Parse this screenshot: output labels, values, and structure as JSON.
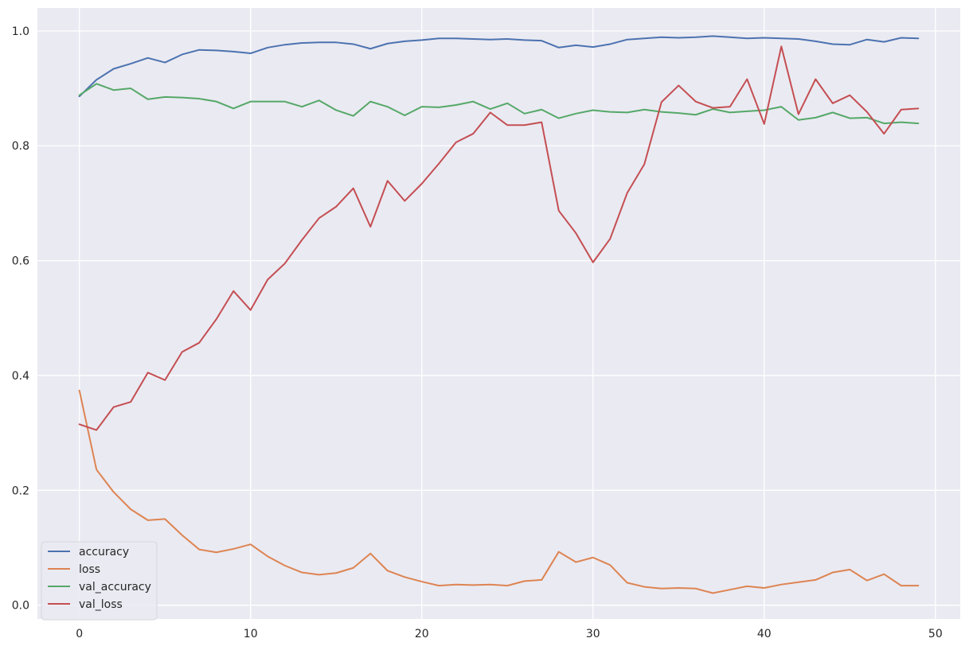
{
  "chart_data": {
    "type": "line",
    "title": "",
    "xlabel": "",
    "ylabel": "",
    "xlim": [
      -2.45,
      51.45
    ],
    "ylim": [
      -0.024,
      1.04
    ],
    "x_ticks": [
      0,
      10,
      20,
      30,
      40,
      50
    ],
    "y_ticks": [
      0.0,
      0.2,
      0.4,
      0.6,
      0.8,
      1.0
    ],
    "x_tick_labels": [
      "0",
      "10",
      "20",
      "30",
      "40",
      "50"
    ],
    "y_tick_labels": [
      "0.0",
      "0.2",
      "0.4",
      "0.6",
      "0.8",
      "1.0"
    ],
    "grid": true,
    "legend_position": "lower-left",
    "background": "#eaeaf2",
    "x": [
      0,
      1,
      2,
      3,
      4,
      5,
      6,
      7,
      8,
      9,
      10,
      11,
      12,
      13,
      14,
      15,
      16,
      17,
      18,
      19,
      20,
      21,
      22,
      23,
      24,
      25,
      26,
      27,
      28,
      29,
      30,
      31,
      32,
      33,
      34,
      35,
      36,
      37,
      38,
      39,
      40,
      41,
      42,
      43,
      44,
      45,
      46,
      47,
      48,
      49
    ],
    "series": [
      {
        "name": "accuracy",
        "color": "#4c72b0",
        "values": [
          0.886,
          0.915,
          0.934,
          0.943,
          0.953,
          0.945,
          0.959,
          0.967,
          0.966,
          0.964,
          0.961,
          0.971,
          0.976,
          0.979,
          0.98,
          0.98,
          0.977,
          0.969,
          0.978,
          0.982,
          0.984,
          0.987,
          0.987,
          0.986,
          0.985,
          0.986,
          0.984,
          0.983,
          0.971,
          0.975,
          0.972,
          0.977,
          0.985,
          0.987,
          0.989,
          0.988,
          0.989,
          0.991,
          0.989,
          0.987,
          0.988,
          0.987,
          0.986,
          0.982,
          0.977,
          0.976,
          0.985,
          0.981,
          0.988,
          0.987
        ]
      },
      {
        "name": "loss",
        "color": "#dd8452",
        "values": [
          0.374,
          0.236,
          0.197,
          0.167,
          0.148,
          0.15,
          0.122,
          0.097,
          0.092,
          0.098,
          0.106,
          0.085,
          0.069,
          0.057,
          0.053,
          0.056,
          0.065,
          0.09,
          0.06,
          0.049,
          0.041,
          0.034,
          0.036,
          0.035,
          0.036,
          0.034,
          0.042,
          0.044,
          0.093,
          0.075,
          0.083,
          0.07,
          0.039,
          0.032,
          0.029,
          0.03,
          0.029,
          0.021,
          0.027,
          0.033,
          0.03,
          0.036,
          0.04,
          0.044,
          0.057,
          0.062,
          0.043,
          0.054,
          0.034,
          0.034
        ]
      },
      {
        "name": "val_accuracy",
        "color": "#55a868",
        "values": [
          0.888,
          0.908,
          0.897,
          0.9,
          0.881,
          0.885,
          0.884,
          0.882,
          0.877,
          0.865,
          0.877,
          0.877,
          0.877,
          0.868,
          0.879,
          0.862,
          0.852,
          0.877,
          0.868,
          0.853,
          0.868,
          0.867,
          0.871,
          0.877,
          0.864,
          0.874,
          0.856,
          0.863,
          0.848,
          0.856,
          0.862,
          0.859,
          0.858,
          0.863,
          0.859,
          0.857,
          0.854,
          0.864,
          0.858,
          0.86,
          0.862,
          0.868,
          0.845,
          0.849,
          0.858,
          0.848,
          0.849,
          0.839,
          0.841,
          0.839
        ]
      },
      {
        "name": "val_loss",
        "color": "#c44e52",
        "values": [
          0.315,
          0.305,
          0.345,
          0.354,
          0.405,
          0.392,
          0.441,
          0.457,
          0.498,
          0.547,
          0.514,
          0.567,
          0.595,
          0.636,
          0.674,
          0.694,
          0.726,
          0.659,
          0.739,
          0.704,
          0.734,
          0.769,
          0.806,
          0.821,
          0.858,
          0.836,
          0.836,
          0.841,
          0.687,
          0.648,
          0.597,
          0.638,
          0.718,
          0.768,
          0.876,
          0.905,
          0.877,
          0.866,
          0.868,
          0.916,
          0.838,
          0.973,
          0.855,
          0.916,
          0.874,
          0.888,
          0.859,
          0.821,
          0.863,
          0.865
        ]
      }
    ]
  }
}
